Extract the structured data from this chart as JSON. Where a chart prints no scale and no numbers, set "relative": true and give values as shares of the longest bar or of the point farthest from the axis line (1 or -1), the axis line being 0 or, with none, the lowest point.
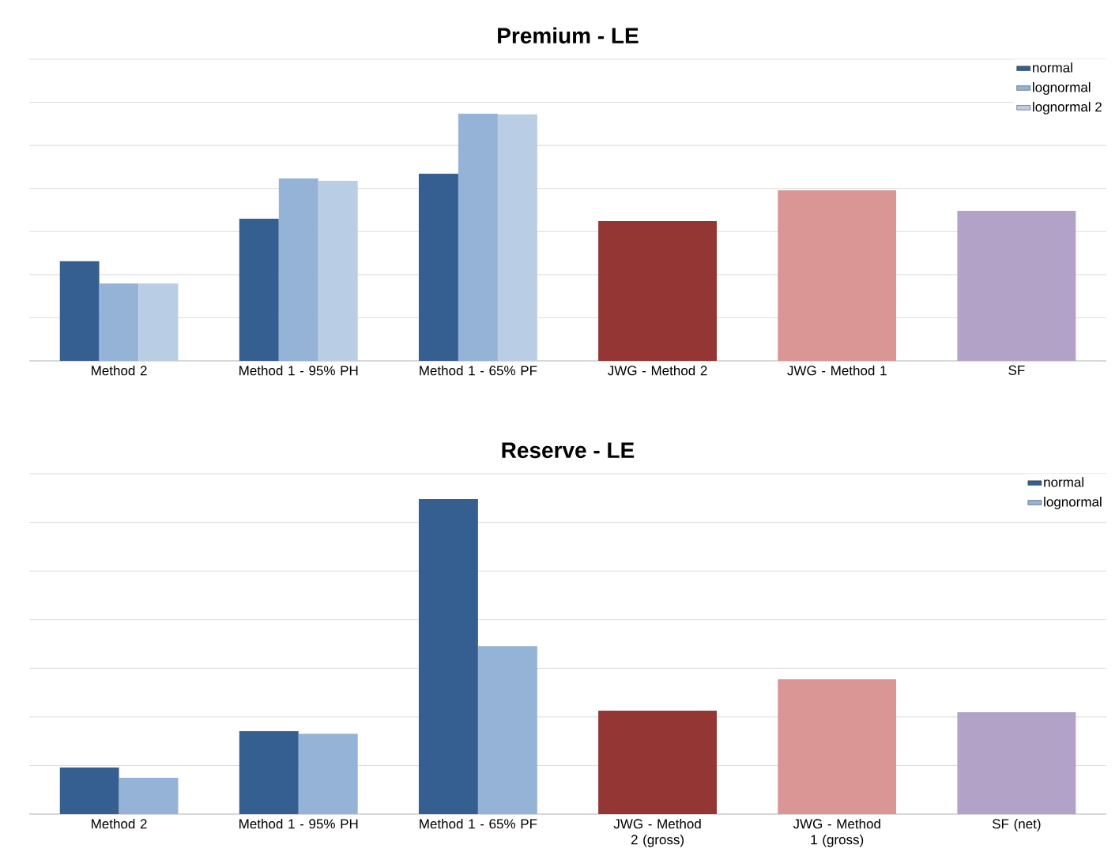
{
  "chart_data": [
    {
      "type": "bar",
      "title": "Premium - LE",
      "relative": true,
      "grid": "y",
      "legend": "top right",
      "categories": [
        "Method 2",
        "Method 1 - 95% PH",
        "Method 1 - 65% PF",
        "JWG - Method 2",
        "JWG - Method 1",
        "SF"
      ],
      "series": [
        {
          "name": "normal",
          "color": "#365f91",
          "values": [
            0.403,
            0.575,
            0.757,
            null,
            null,
            null
          ]
        },
        {
          "name": "lognormal",
          "color": "#95b3d7",
          "values": [
            0.313,
            0.738,
            1,
            null,
            null,
            null
          ]
        },
        {
          "name": "lognormal 2",
          "color": "#b9cde5",
          "values": [
            0.313,
            0.728,
            0.997,
            null,
            null,
            null
          ]
        },
        {
          "colors": [
            null,
            null,
            null,
            "#943634",
            "#d99694",
            "#b3a2c7"
          ],
          "values": [
            null,
            null,
            null,
            0.565,
            0.69,
            0.607
          ]
        }
      ]
    },
    {
      "type": "bar",
      "title": "Reserve - LE",
      "relative": true,
      "grid": "y",
      "legend": "top right",
      "categories": [
        "Method 2",
        "Method 1 - 95% PH",
        "Method 1 - 65% PF",
        "JWG - Method 2 (gross)",
        "JWG - Method 1 (gross)",
        "SF (net)"
      ],
      "series": [
        {
          "name": "normal",
          "color": "#365f91",
          "values": [
            0.148,
            0.263,
            1,
            null,
            null,
            null
          ]
        },
        {
          "name": "lognormal",
          "color": "#95b3d7",
          "values": [
            0.115,
            0.255,
            0.533,
            null,
            null,
            null
          ]
        },
        {
          "colors": [
            null,
            null,
            null,
            "#943634",
            "#d99694",
            "#b3a2c7"
          ],
          "values": [
            null,
            null,
            null,
            0.328,
            0.428,
            0.323
          ]
        }
      ]
    }
  ]
}
